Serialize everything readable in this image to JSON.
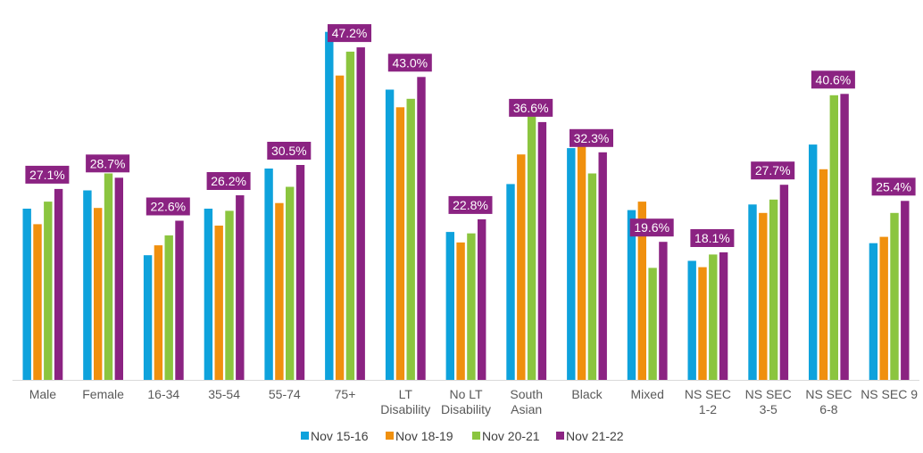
{
  "chart_data": {
    "type": "bar",
    "title": "",
    "xlabel": "",
    "ylabel": "",
    "ylim": [
      0,
      50
    ],
    "grid": false,
    "legend_position": "bottom",
    "categories": [
      [
        "Male"
      ],
      [
        "Female"
      ],
      [
        "16-34"
      ],
      [
        "35-54"
      ],
      [
        "55-74"
      ],
      [
        "75+"
      ],
      [
        "LT",
        "Disability"
      ],
      [
        "No LT",
        "Disability"
      ],
      [
        "South",
        "Asian"
      ],
      [
        "Black"
      ],
      [
        "Mixed"
      ],
      [
        "NS SEC",
        "1-2"
      ],
      [
        "NS SEC",
        "3-5"
      ],
      [
        "NS SEC",
        "6-8"
      ],
      [
        "NS SEC 9"
      ]
    ],
    "series": [
      {
        "name": "Nov 15-16",
        "color": "#0ea2dc",
        "values": [
          24.3,
          26.9,
          17.7,
          24.3,
          30.0,
          49.4,
          41.2,
          21.0,
          27.8,
          32.9,
          24.1,
          16.9,
          24.9,
          33.4,
          19.4
        ]
      },
      {
        "name": "Nov 18-19",
        "color": "#f0900e",
        "values": [
          22.1,
          24.4,
          19.1,
          21.9,
          25.1,
          43.2,
          38.7,
          19.5,
          32.0,
          35.3,
          25.3,
          16.0,
          23.7,
          29.9,
          20.3
        ]
      },
      {
        "name": "Nov 20-21",
        "color": "#8bc53f",
        "values": [
          25.3,
          29.3,
          20.5,
          24.0,
          27.4,
          46.6,
          39.9,
          20.8,
          37.4,
          29.3,
          15.9,
          17.8,
          25.6,
          40.4,
          23.7
        ]
      },
      {
        "name": "Nov 21-22",
        "color": "#8b2382",
        "values": [
          27.1,
          28.7,
          22.6,
          26.2,
          30.5,
          47.2,
          43.0,
          22.8,
          36.6,
          32.3,
          19.6,
          18.1,
          27.7,
          40.6,
          25.4
        ]
      }
    ],
    "data_labels": [
      "27.1%",
      "28.7%",
      "22.6%",
      "26.2%",
      "30.5%",
      "47.2%",
      "43.0%",
      "22.8%",
      "36.6%",
      "32.3%",
      "19.6%",
      "18.1%",
      "27.7%",
      "40.6%",
      "25.4%"
    ],
    "data_label_series": "Nov 21-22",
    "data_label_color": "#8b2382"
  }
}
